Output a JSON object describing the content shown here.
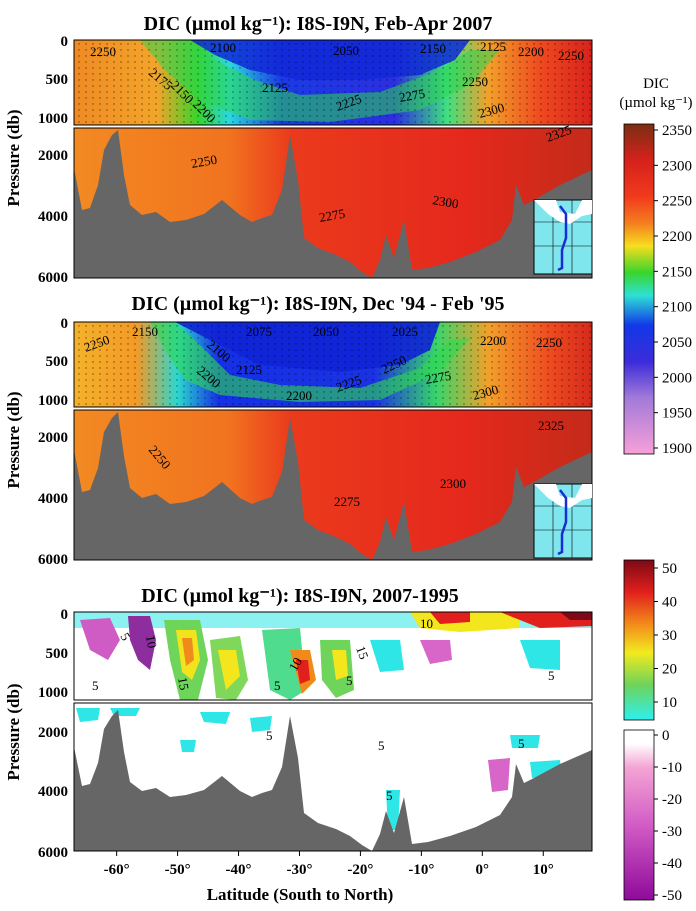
{
  "chart_data": [
    {
      "type": "heatmap",
      "title": "DIC (µmol kg⁻¹): I8S-I9N, Feb-Apr 2007",
      "ylabel": "Pressure (db)",
      "xlim": [
        -67,
        18
      ],
      "ylim": [
        6000,
        0
      ],
      "upper_yticks": [
        "0",
        "500",
        "1000"
      ],
      "lower_yticks": [
        "2000",
        "4000",
        "6000"
      ],
      "colorbar": {
        "label_line1": "DIC",
        "label_line2": "(µmol kg⁻¹)",
        "ticks": [
          "2350",
          "2300",
          "2250",
          "2200",
          "2150",
          "2100",
          "2050",
          "2000",
          "1950",
          "1900"
        ]
      },
      "contour_labels": [
        "2250",
        "2100",
        "2050",
        "2150",
        "2125",
        "2200",
        "2250",
        "2175",
        "2150",
        "2125",
        "2200",
        "2225",
        "2275",
        "2250",
        "2300",
        "2325",
        "2250",
        "2300",
        "2275"
      ]
    },
    {
      "type": "heatmap",
      "title": "DIC (µmol kg⁻¹): I8S-I9N, Dec '94 - Feb '95",
      "ylabel": "Pressure (db)",
      "xlim": [
        -67,
        18
      ],
      "ylim": [
        6000,
        0
      ],
      "upper_yticks": [
        "0",
        "500",
        "1000"
      ],
      "lower_yticks": [
        "2000",
        "4000",
        "6000"
      ],
      "contour_labels": [
        "2250",
        "2150",
        "2075",
        "2050",
        "2025",
        "2200",
        "2250",
        "2100",
        "2200",
        "2125",
        "2250",
        "2275",
        "2200",
        "2225",
        "2300",
        "2250",
        "2325",
        "2300",
        "2275"
      ]
    },
    {
      "type": "heatmap",
      "title": "DIC (µmol kg⁻¹): I8S-I9N, 2007-1995",
      "ylabel": "Pressure (db)",
      "xlabel": "Latitude (South to North)",
      "xlim": [
        -67,
        18
      ],
      "ylim": [
        6000,
        0
      ],
      "upper_yticks": [
        "0",
        "500",
        "1000"
      ],
      "lower_yticks": [
        "2000",
        "4000",
        "6000"
      ],
      "xticks": [
        "-60°",
        "-50°",
        "-40°",
        "-30°",
        "-20°",
        "-10°",
        "0°",
        "10°"
      ],
      "colorbar_positive": {
        "ticks": [
          "50",
          "40",
          "30",
          "20",
          "10"
        ]
      },
      "colorbar_negative": {
        "ticks": [
          "0",
          "-10",
          "-20",
          "-30",
          "-40",
          "-50"
        ]
      },
      "contour_labels": [
        "5",
        "5",
        "10",
        "15",
        "5",
        "10",
        "5",
        "15",
        "10",
        "5",
        "5",
        "5",
        "5",
        "5"
      ]
    }
  ],
  "colors": {
    "bathymetry": "#666666",
    "colorbar_dic": [
      "#8b3a1a",
      "#e8221c",
      "#f37a1e",
      "#f9e21b",
      "#39d52b",
      "#2ed8e3",
      "#1230e6",
      "#7a2fd6",
      "#c9a2e6",
      "#f59ad8"
    ],
    "colorbar_diff_pos": [
      "#8b0a1a",
      "#e11f1c",
      "#f3841a",
      "#f5e71b",
      "#7fd85a",
      "#2ee6e6"
    ],
    "colorbar_diff_neg": [
      "#ffffff",
      "#f3a6d6",
      "#d866c8",
      "#b530c0",
      "#8f0a9c"
    ]
  }
}
